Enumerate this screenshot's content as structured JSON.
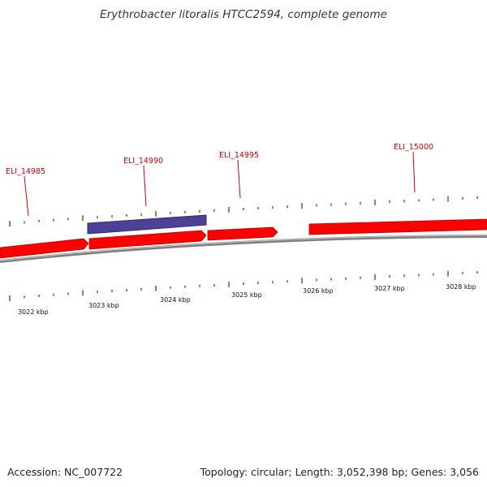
{
  "title": "Erythrobacter litoralis HTCC2594, complete genome",
  "footer": {
    "accession": "Accession: NC_007722",
    "summary": "Topology: circular; Length: 3,052,398 bp; Genes: 3,056"
  },
  "genes": [
    {
      "label": "ELI_14985",
      "strand": "forward",
      "color": "#ff0000"
    },
    {
      "label": "ELI_14990",
      "strand": "forward",
      "color": "#ff0000"
    },
    {
      "label": "ELI_14995",
      "strand": "forward",
      "color": "#ff0000"
    },
    {
      "label": "ELI_15000",
      "strand": "forward",
      "color": "#ff0000"
    }
  ],
  "features": [
    {
      "name": "ELI_14990 feature",
      "color": "#4b4196"
    }
  ],
  "tick_labels": [
    "3022 kbp",
    "3023 kbp",
    "3024 kbp",
    "3025 kbp",
    "3026 kbp",
    "3027 kbp",
    "3028 kbp"
  ],
  "colors": {
    "gene": "#ff0000",
    "feature": "#4b4196",
    "ticks": "#2f8f2f",
    "backbone": "#808080",
    "label_line": "#cc0000"
  }
}
